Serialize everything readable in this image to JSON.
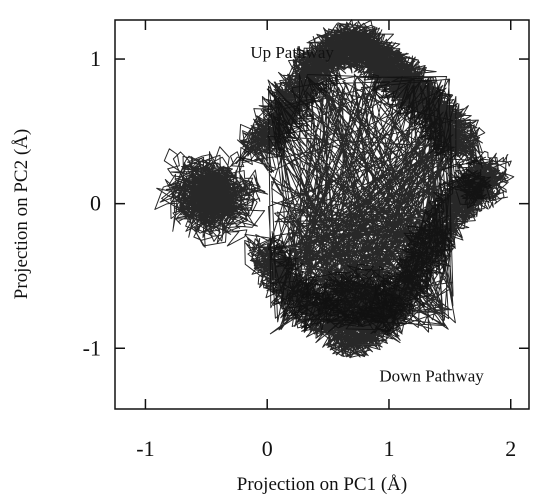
{
  "chart_data": {
    "type": "line",
    "title": "",
    "xlabel": "Projection on PC1 (Å)",
    "ylabel": "Projection on PC2 (Å)",
    "xlim": [
      -1.25,
      2.15
    ],
    "ylim": [
      -1.42,
      1.27
    ],
    "x_ticks": [
      -1,
      0,
      1,
      2
    ],
    "y_ticks": [
      -1,
      0,
      1
    ],
    "x_tick_labels": [
      "-1",
      "0",
      "1",
      "2"
    ],
    "y_tick_labels": [
      "-1",
      "0",
      "1"
    ],
    "grid": false,
    "legend": "none",
    "line_color": "#111111",
    "annotations": [
      {
        "text": "Up Pathway",
        "x": -0.04,
        "y": 1.05
      },
      {
        "text": "Down Pathway",
        "x": 1.02,
        "y": -1.19
      }
    ],
    "series": [
      {
        "description_free": true,
        "clusters": [
          {
            "center": [
              -0.45,
              0.05
            ],
            "spread": [
              0.38,
              0.3
            ],
            "steps": 1400
          },
          {
            "center": [
              1.75,
              0.18
            ],
            "spread": [
              0.22,
              0.17
            ],
            "steps": 700
          },
          {
            "center": [
              0.72,
              -0.65
            ],
            "spread": [
              0.4,
              0.23
            ],
            "steps": 650
          }
        ],
        "up_pathway": [
          [
            -0.1,
            0.35
          ],
          [
            0.15,
            0.65
          ],
          [
            0.35,
            0.9
          ],
          [
            0.55,
            1.05
          ],
          [
            0.72,
            1.12
          ],
          [
            0.9,
            1.0
          ],
          [
            1.05,
            0.9
          ],
          [
            1.25,
            0.75
          ],
          [
            1.45,
            0.55
          ],
          [
            1.62,
            0.38
          ]
        ],
        "down_pathway": [
          [
            -0.05,
            -0.3
          ],
          [
            0.15,
            -0.55
          ],
          [
            0.4,
            -0.75
          ],
          [
            0.7,
            -0.95
          ],
          [
            0.95,
            -0.8
          ],
          [
            1.15,
            -0.55
          ],
          [
            1.35,
            -0.25
          ],
          [
            1.55,
            0.0
          ],
          [
            1.7,
            0.12
          ]
        ]
      }
    ]
  }
}
